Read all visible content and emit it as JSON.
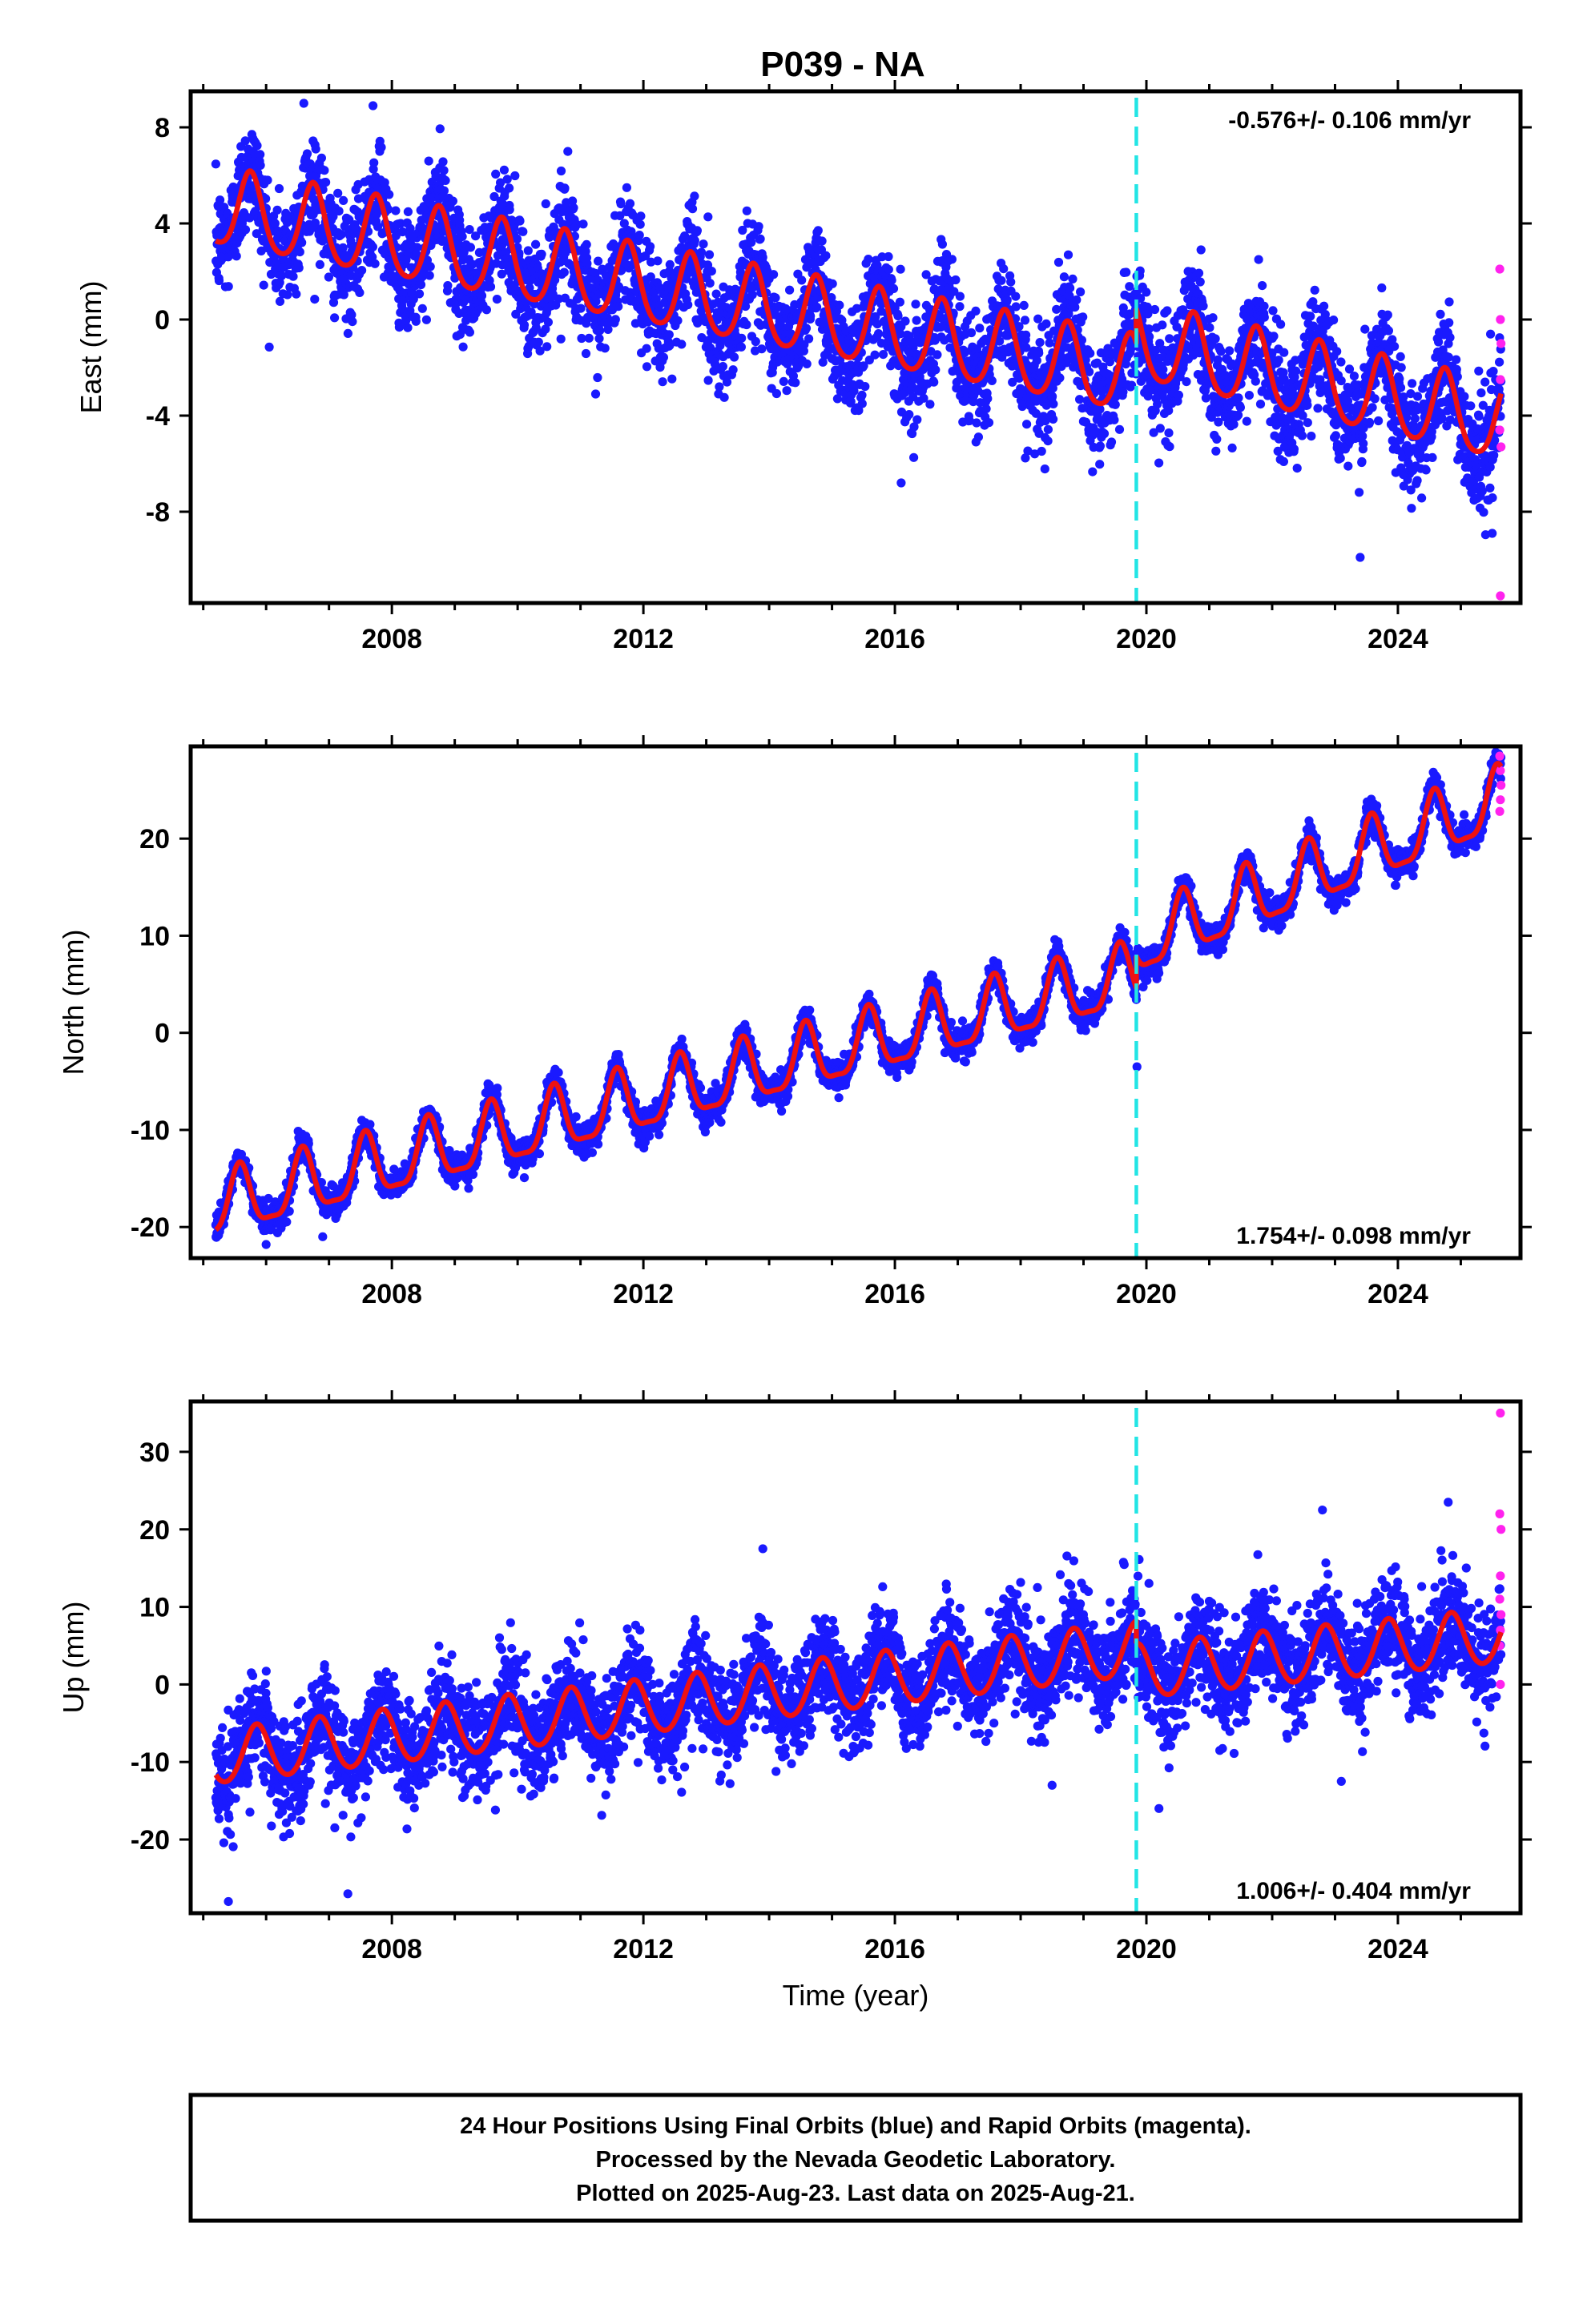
{
  "title": "P039 - NA",
  "colors": {
    "final_orbit_points": "#1a1aff",
    "rapid_orbit_points": "#ff22ee",
    "model_line": "#ee1111",
    "equipment_change_line": "#22e5e5",
    "frame": "#000000"
  },
  "chart_data": [
    {
      "type": "scatter",
      "name": "east",
      "ylabel": "East (mm)",
      "xlabel": "",
      "xlim": [
        2004.8,
        2025.95
      ],
      "ylim": [
        -11.8,
        9.5
      ],
      "x_ticks": [
        2008,
        2012,
        2016,
        2020,
        2024
      ],
      "y_ticks": [
        -8,
        -4,
        0,
        4,
        8
      ],
      "rate_text": "-0.576+/- 0.106 mm/yr",
      "rate_position": "top-right",
      "data_start": 2005.2,
      "data_end": 2025.64,
      "offset_epoch": 2019.84,
      "model": {
        "segments": [
          {
            "t_start": 2005.2,
            "t_end": 2019.84,
            "value_at_start": 4.6,
            "rate": -0.48
          },
          {
            "t_start": 2019.84,
            "t_end": 2025.64,
            "value_at_start": -1.0,
            "rate": -0.58
          }
        ],
        "annual_amplitude": 1.6,
        "annual_phase_peak": 0.75,
        "semiannual_amplitude": 0.25
      },
      "scatter_std": 1.15,
      "outliers": [
        [
          2006.6,
          9.0
        ],
        [
          2007.7,
          8.9
        ],
        [
          2016.1,
          -6.8
        ],
        [
          2023.4,
          -9.9
        ],
        [
          2025.5,
          -8.9
        ]
      ],
      "rapid_points": [
        [
          2025.62,
          2.1
        ],
        [
          2025.63,
          0.0
        ],
        [
          2025.64,
          -1.0
        ],
        [
          2025.63,
          -2.5
        ],
        [
          2025.62,
          -4.6
        ],
        [
          2025.64,
          -5.3
        ],
        [
          2025.63,
          -11.5
        ]
      ]
    },
    {
      "type": "scatter",
      "name": "north",
      "ylabel": "North (mm)",
      "xlabel": "",
      "xlim": [
        2004.8,
        2025.95
      ],
      "ylim": [
        -23.2,
        29.5
      ],
      "x_ticks": [
        2008,
        2012,
        2016,
        2020,
        2024
      ],
      "y_ticks": [
        -20,
        -10,
        0,
        10,
        20
      ],
      "rate_text": "1.754+/- 0.098 mm/yr",
      "rate_position": "bottom-right",
      "data_start": 2005.2,
      "data_end": 2025.64,
      "offset_epoch": 2019.84,
      "model": {
        "segments": [
          {
            "t_start": 2005.2,
            "t_end": 2019.84,
            "value_at_start": -18.0,
            "rate": 1.62
          },
          {
            "t_start": 2019.84,
            "t_end": 2025.64,
            "value_at_start": 9.0,
            "rate": 2.55
          }
        ],
        "annual_amplitude": 3.2,
        "annual_phase_peak": 0.58,
        "semiannual_amplitude": 0.9
      },
      "scatter_std": 0.75,
      "outliers": [
        [
          2006.0,
          -21.8
        ],
        [
          2006.9,
          -21.0
        ],
        [
          2019.85,
          -3.5
        ]
      ],
      "rapid_points": [
        [
          2025.62,
          28.5
        ],
        [
          2025.63,
          27.0
        ],
        [
          2025.64,
          25.5
        ],
        [
          2025.63,
          24.0
        ],
        [
          2025.62,
          22.8
        ]
      ]
    },
    {
      "type": "scatter",
      "name": "up",
      "ylabel": "Up (mm)",
      "xlabel": "Time (year)",
      "xlim": [
        2004.8,
        2025.95
      ],
      "ylim": [
        -29.5,
        36.5
      ],
      "x_ticks": [
        2008,
        2012,
        2016,
        2020,
        2024
      ],
      "y_ticks": [
        -20,
        -10,
        0,
        10,
        20,
        30
      ],
      "rate_text": "1.006+/- 0.404 mm/yr",
      "rate_position": "bottom-right",
      "data_start": 2005.2,
      "data_end": 2025.64,
      "offset_epoch": 2019.84,
      "model": {
        "segments": [
          {
            "t_start": 2005.2,
            "t_end": 2019.84,
            "value_at_start": -9.5,
            "rate": 0.95
          },
          {
            "t_start": 2019.84,
            "t_end": 2025.64,
            "value_at_start": 1.5,
            "rate": 0.8
          }
        ],
        "annual_amplitude": 3.5,
        "annual_phase_peak": 0.85,
        "semiannual_amplitude": 0.3
      },
      "scatter_std": 3.3,
      "outliers": [
        [
          2005.4,
          -28.0
        ],
        [
          2007.3,
          -27.0
        ],
        [
          2013.9,
          17.5
        ],
        [
          2018.5,
          -13.0
        ],
        [
          2020.2,
          -16.0
        ],
        [
          2022.8,
          22.5
        ],
        [
          2023.1,
          -12.5
        ],
        [
          2024.8,
          23.5
        ]
      ],
      "rapid_points": [
        [
          2025.63,
          35.0
        ],
        [
          2025.62,
          22.0
        ],
        [
          2025.64,
          20.0
        ],
        [
          2025.63,
          14.0
        ],
        [
          2025.62,
          11.0
        ],
        [
          2025.64,
          9.0
        ],
        [
          2025.63,
          7.0
        ],
        [
          2025.62,
          5.0
        ],
        [
          2025.63,
          0.0
        ]
      ]
    }
  ],
  "footer": {
    "line1": "24 Hour Positions Using Final Orbits (blue) and Rapid Orbits (magenta).",
    "line2": "Processed by the Nevada Geodetic Laboratory.",
    "line3": "Plotted on 2025-Aug-23. Last data on 2025-Aug-21."
  }
}
